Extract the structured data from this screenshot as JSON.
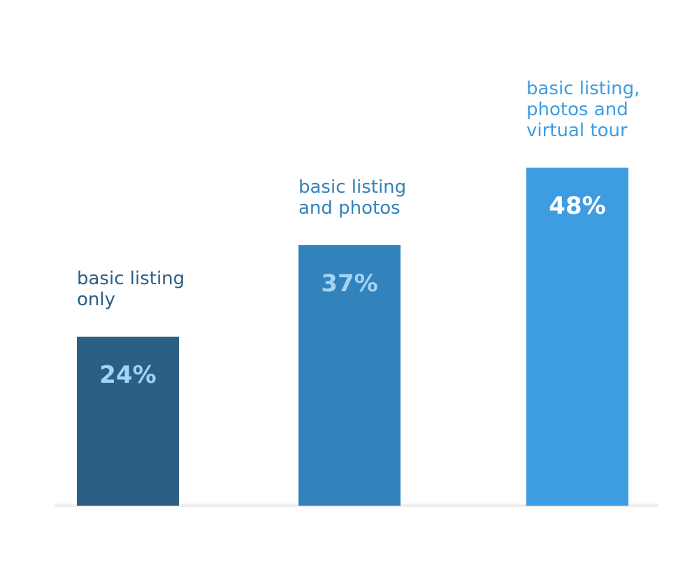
{
  "chart_data": {
    "type": "bar",
    "categories": [
      "basic listing only",
      "basic listing and photos",
      "basic listing, photos and virtual tour"
    ],
    "category_label_lines": [
      [
        "basic listing",
        "only"
      ],
      [
        "basic listing",
        "and photos"
      ],
      [
        "basic listing,",
        "photos and",
        "virtual tour"
      ]
    ],
    "values": [
      24,
      37,
      48
    ],
    "value_labels": [
      "24%",
      "37%",
      "48%"
    ],
    "ylim": [
      0,
      48
    ],
    "grid": false,
    "legend": "none",
    "colors": {
      "bars": [
        "#2b5f85",
        "#3283bb",
        "#3d9de0"
      ],
      "category_labels": [
        "#2b5f85",
        "#3283bb",
        "#3d9de0"
      ],
      "value_labels": "#a3d3f5",
      "value_label_last": "#ffffff",
      "baseline": "#eeeeee"
    }
  }
}
